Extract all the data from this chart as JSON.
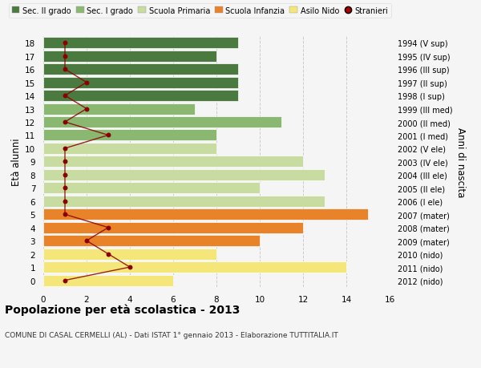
{
  "ages": [
    0,
    1,
    2,
    3,
    4,
    5,
    6,
    7,
    8,
    9,
    10,
    11,
    12,
    13,
    14,
    15,
    16,
    17,
    18
  ],
  "right_labels": [
    "2012 (nido)",
    "2011 (nido)",
    "2010 (nido)",
    "2009 (mater)",
    "2008 (mater)",
    "2007 (mater)",
    "2006 (I ele)",
    "2005 (II ele)",
    "2004 (III ele)",
    "2003 (IV ele)",
    "2002 (V ele)",
    "2001 (I med)",
    "2000 (II med)",
    "1999 (III med)",
    "1998 (I sup)",
    "1997 (II sup)",
    "1996 (III sup)",
    "1995 (IV sup)",
    "1994 (V sup)"
  ],
  "bar_values": [
    6,
    14,
    8,
    10,
    12,
    15,
    13,
    10,
    13,
    12,
    8,
    8,
    11,
    7,
    9,
    9,
    9,
    8,
    9
  ],
  "bar_colors": [
    "#f5e67a",
    "#f5e67a",
    "#f5e67a",
    "#e8832a",
    "#e8832a",
    "#e8832a",
    "#c8dba0",
    "#c8dba0",
    "#c8dba0",
    "#c8dba0",
    "#c8dba0",
    "#8ab870",
    "#8ab870",
    "#8ab870",
    "#4a7a40",
    "#4a7a40",
    "#4a7a40",
    "#4a7a40",
    "#4a7a40"
  ],
  "stranieri_values": [
    1,
    4,
    3,
    2,
    3,
    1,
    1,
    1,
    1,
    1,
    1,
    3,
    1,
    2,
    1,
    2,
    1,
    1,
    1
  ],
  "legend_labels": [
    "Sec. II grado",
    "Sec. I grado",
    "Scuola Primaria",
    "Scuola Infanzia",
    "Asilo Nido",
    "Stranieri"
  ],
  "legend_colors": [
    "#4a7a40",
    "#8ab870",
    "#c8dba0",
    "#e8832a",
    "#f5e67a",
    "#aa0000"
  ],
  "title": "Popolazione per età scolastica - 2013",
  "subtitle": "COMUNE DI CASAL CERMELLI (AL) - Dati ISTAT 1° gennaio 2013 - Elaborazione TUTTITALIA.IT",
  "ylabel": "Età alunni",
  "right_ylabel": "Anni di nascita",
  "xlim": [
    0,
    16
  ],
  "bg_color": "#f5f5f5",
  "bar_height": 0.85,
  "grid_color": "#cccccc"
}
